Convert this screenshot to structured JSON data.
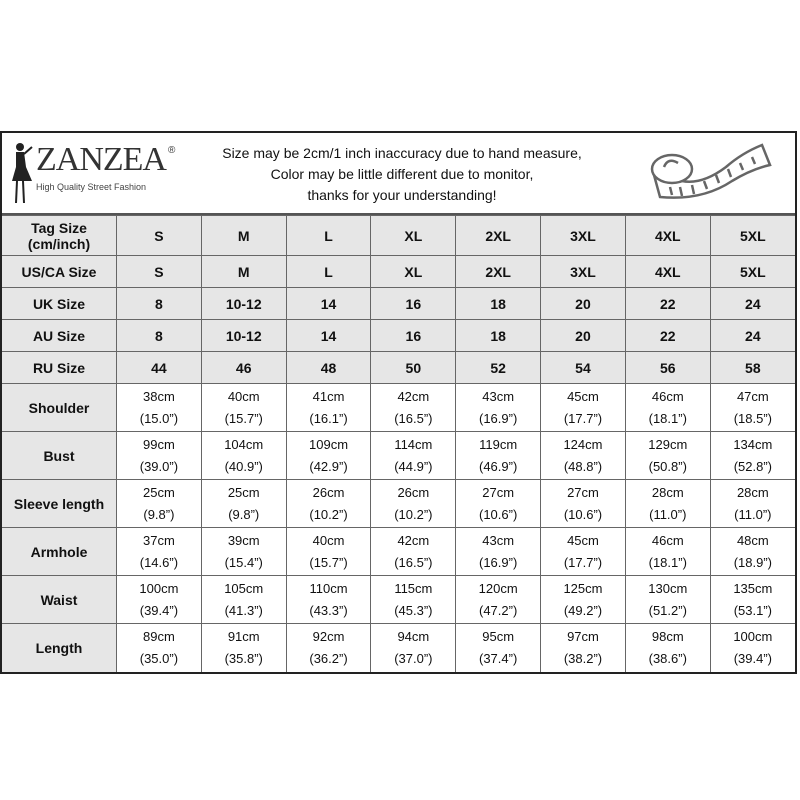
{
  "brand": {
    "name": "ZANZEA",
    "registered": "®",
    "tagline": "High Quality Street Fashion"
  },
  "notice": [
    "Size may be 2cm/1 inch inaccuracy due to hand measure,",
    "Color may be little different due to monitor,",
    "thanks for your understanding!"
  ],
  "icons": {
    "logo": "woman-silhouette-icon",
    "measure": "measuring-tape-icon"
  },
  "colors": {
    "header_bg": "#e6e6e6",
    "border": "#666666"
  },
  "size_rows": [
    {
      "label": "Tag Size (cm/inch)",
      "values": [
        "S",
        "M",
        "L",
        "XL",
        "2XL",
        "3XL",
        "4XL",
        "5XL"
      ]
    },
    {
      "label": "US/CA Size",
      "values": [
        "S",
        "M",
        "L",
        "XL",
        "2XL",
        "3XL",
        "4XL",
        "5XL"
      ]
    },
    {
      "label": "UK Size",
      "values": [
        "8",
        "10-12",
        "14",
        "16",
        "18",
        "20",
        "22",
        "24"
      ]
    },
    {
      "label": "AU Size",
      "values": [
        "8",
        "10-12",
        "14",
        "16",
        "18",
        "20",
        "22",
        "24"
      ]
    },
    {
      "label": "RU Size",
      "values": [
        "44",
        "46",
        "48",
        "50",
        "52",
        "54",
        "56",
        "58"
      ]
    }
  ],
  "measure_rows": [
    {
      "label": "Shoulder",
      "cm": [
        "38cm",
        "40cm",
        "41cm",
        "42cm",
        "43cm",
        "45cm",
        "46cm",
        "47cm"
      ],
      "inch": [
        "(15.0”)",
        "(15.7”)",
        "(16.1”)",
        "(16.5”)",
        "(16.9”)",
        "(17.7”)",
        "(18.1”)",
        "(18.5”)"
      ]
    },
    {
      "label": "Bust",
      "cm": [
        "99cm",
        "104cm",
        "109cm",
        "114cm",
        "119cm",
        "124cm",
        "129cm",
        "134cm"
      ],
      "inch": [
        "(39.0”)",
        "(40.9”)",
        "(42.9”)",
        "(44.9”)",
        "(46.9”)",
        "(48.8”)",
        "(50.8”)",
        "(52.8”)"
      ]
    },
    {
      "label": "Sleeve length",
      "cm": [
        "25cm",
        "25cm",
        "26cm",
        "26cm",
        "27cm",
        "27cm",
        "28cm",
        "28cm"
      ],
      "inch": [
        "(9.8”)",
        "(9.8”)",
        "(10.2”)",
        "(10.2”)",
        "(10.6”)",
        "(10.6”)",
        "(11.0”)",
        "(11.0”)"
      ]
    },
    {
      "label": "Armhole",
      "cm": [
        "37cm",
        "39cm",
        "40cm",
        "42cm",
        "43cm",
        "45cm",
        "46cm",
        "48cm"
      ],
      "inch": [
        "(14.6”)",
        "(15.4”)",
        "(15.7”)",
        "(16.5”)",
        "(16.9”)",
        "(17.7”)",
        "(18.1”)",
        "(18.9”)"
      ]
    },
    {
      "label": "Waist",
      "cm": [
        "100cm",
        "105cm",
        "110cm",
        "115cm",
        "120cm",
        "125cm",
        "130cm",
        "135cm"
      ],
      "inch": [
        "(39.4”)",
        "(41.3”)",
        "(43.3”)",
        "(45.3”)",
        "(47.2”)",
        "(49.2”)",
        "(51.2”)",
        "(53.1”)"
      ]
    },
    {
      "label": "Length",
      "cm": [
        "89cm",
        "91cm",
        "92cm",
        "94cm",
        "95cm",
        "97cm",
        "98cm",
        "100cm"
      ],
      "inch": [
        "(35.0”)",
        "(35.8”)",
        "(36.2”)",
        "(37.0”)",
        "(37.4”)",
        "(38.2”)",
        "(38.6”)",
        "(39.4”)"
      ]
    }
  ]
}
